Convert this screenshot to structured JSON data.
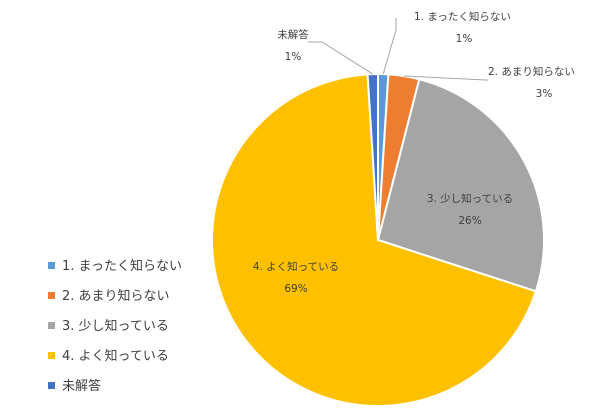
{
  "chart_data": {
    "type": "pie",
    "slices": [
      {
        "label": "1. まったく知らない",
        "value": 1,
        "value_label": "1%",
        "color": "#5b9bd5"
      },
      {
        "label": "2. あまり知らない",
        "value": 3,
        "value_label": "3%",
        "color": "#ed7d31"
      },
      {
        "label": "3. 少し知っている",
        "value": 26,
        "value_label": "26%",
        "color": "#a5a5a5"
      },
      {
        "label": "4. よく知っている",
        "value": 69,
        "value_label": "69%",
        "color": "#ffc000"
      },
      {
        "label": "未解答",
        "value": 1,
        "value_label": "1%",
        "color": "#4472c4"
      }
    ],
    "legend_position": "left"
  }
}
